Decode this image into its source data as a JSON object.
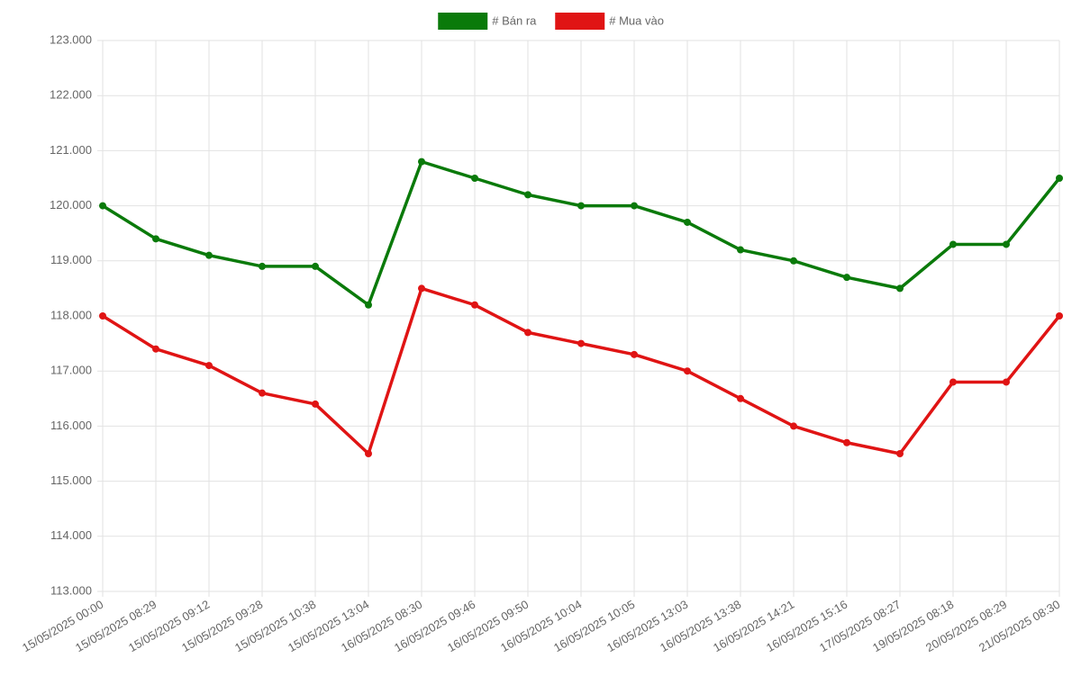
{
  "chart_data": {
    "type": "line",
    "categories": [
      "15/05/2025 00:00",
      "15/05/2025 08:29",
      "15/05/2025 09:12",
      "15/05/2025 09:28",
      "15/05/2025 10:38",
      "15/05/2025 13:04",
      "16/05/2025 08:30",
      "16/05/2025 09:46",
      "16/05/2025 09:50",
      "16/05/2025 10:04",
      "16/05/2025 10:05",
      "16/05/2025 13:03",
      "16/05/2025 13:38",
      "16/05/2025 14:21",
      "16/05/2025 15:16",
      "17/05/2025 08:27",
      "19/05/2025 08:18",
      "20/05/2025 08:29",
      "21/05/2025 08:30"
    ],
    "series": [
      {
        "name": "# Bán ra",
        "color": "#0a7a0a",
        "values": [
          120000,
          119400,
          119100,
          118900,
          118900,
          118200,
          120800,
          120500,
          120200,
          120000,
          120000,
          119700,
          119200,
          119000,
          118700,
          118500,
          119300,
          119300,
          120500
        ]
      },
      {
        "name": "# Mua vào",
        "color": "#e01414",
        "values": [
          118000,
          117400,
          117100,
          116600,
          116400,
          115500,
          118500,
          118200,
          117700,
          117500,
          117300,
          117000,
          116500,
          116000,
          115700,
          115500,
          116800,
          116800,
          118000
        ]
      }
    ],
    "ylim": [
      113000,
      123000
    ],
    "yticks": [
      {
        "value": 113000,
        "label": "113.000"
      },
      {
        "value": 114000,
        "label": "114.000"
      },
      {
        "value": 115000,
        "label": "115.000"
      },
      {
        "value": 116000,
        "label": "116.000"
      },
      {
        "value": 117000,
        "label": "117.000"
      },
      {
        "value": 118000,
        "label": "118.000"
      },
      {
        "value": 119000,
        "label": "119.000"
      },
      {
        "value": 120000,
        "label": "120.000"
      },
      {
        "value": 121000,
        "label": "121.000"
      },
      {
        "value": 122000,
        "label": "122.000"
      },
      {
        "value": 123000,
        "label": "123.000"
      }
    ],
    "grid": true,
    "legend": "top"
  }
}
